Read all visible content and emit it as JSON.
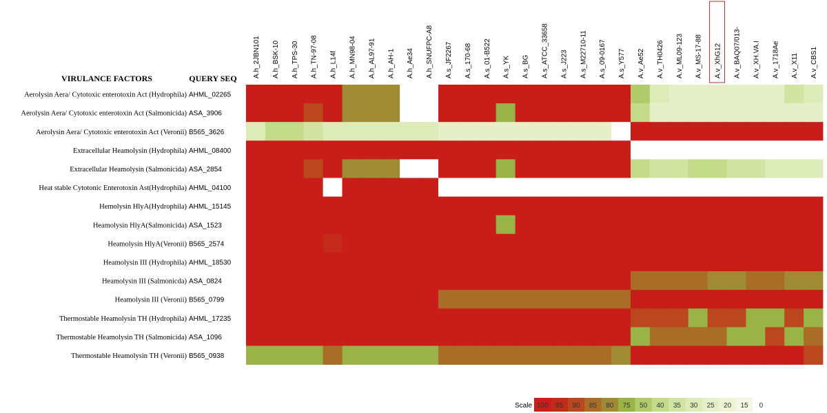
{
  "chart_data": {
    "type": "heatmap",
    "header_factors": "VIRULANCE FACTORS",
    "header_query": "QUERY SEQ",
    "columns": [
      "A.h_2JBN101",
      "A.h_BSK-10",
      "A.h_TPS-30",
      "A.h_TN-97-08",
      "A.h_L14f",
      "A.h_MN98-04",
      "A.h_AL97-91",
      "A.h_AH-1",
      "A.h_Ae34",
      "A.h_SNUFPC-A8",
      "A.s_JF2267",
      "A.s_170-68",
      "A.s_01-B522",
      "A.s_YK",
      "A.s_BG",
      "A.s_ATCC_33658",
      "A.s_J223",
      "A.s_M22710-11",
      "A.s_09-0167",
      "A.s_Y577",
      "A.v_Ae52",
      "A.v_TH0426",
      "A.v_ML09-123",
      "A.v_MS-17-88",
      "A.v_XhG12",
      "A.v_BAQ07/013-",
      "A.v_XH.VA.I",
      "A.v_1718Ae",
      "A.v_X11",
      "A.v_CBS1"
    ],
    "highlighted_column": "A.v_XhG12",
    "rows": [
      {
        "factor": "Aerolysin Aera/ Cytotoxic enterotoxin Act (Hydrophila)",
        "query": "AHML_02265",
        "values": [
          100,
          100,
          100,
          100,
          100,
          80,
          80,
          80,
          null,
          null,
          100,
          100,
          100,
          100,
          100,
          100,
          100,
          100,
          100,
          100,
          50,
          30,
          25,
          25,
          25,
          25,
          25,
          25,
          35,
          30
        ]
      },
      {
        "factor": "Aerolysin Aera/ Cytotoxic enterotoxin Act (Salmonicida)",
        "query": "ASA_3906",
        "values": [
          100,
          100,
          100,
          90,
          100,
          80,
          80,
          80,
          null,
          null,
          100,
          100,
          100,
          75,
          100,
          100,
          100,
          100,
          100,
          100,
          40,
          25,
          25,
          25,
          25,
          25,
          25,
          25,
          25,
          25
        ]
      },
      {
        "factor": "Aerolysin Aera/ Cytotoxic enterotoxin Act (Veronii)",
        "query": "B565_3626",
        "values": [
          30,
          40,
          40,
          35,
          30,
          30,
          30,
          30,
          30,
          30,
          25,
          25,
          25,
          25,
          25,
          25,
          25,
          25,
          25,
          null,
          100,
          100,
          100,
          100,
          100,
          100,
          100,
          100,
          100,
          100
        ]
      },
      {
        "factor": "Extracellular Heamolysin (Hydrophila)",
        "query": "AHML_08400",
        "values": [
          100,
          100,
          100,
          100,
          100,
          100,
          100,
          100,
          100,
          100,
          100,
          100,
          100,
          100,
          100,
          100,
          100,
          100,
          100,
          100,
          null,
          null,
          null,
          null,
          null,
          null,
          null,
          null,
          null,
          null
        ]
      },
      {
        "factor": "Extracellular Heamolysin (Salmonicida)",
        "query": "ASA_2854",
        "values": [
          100,
          100,
          100,
          90,
          100,
          80,
          80,
          80,
          null,
          null,
          100,
          100,
          100,
          75,
          100,
          100,
          100,
          100,
          100,
          100,
          40,
          35,
          35,
          40,
          40,
          35,
          35,
          30,
          30,
          30
        ]
      },
      {
        "factor": "Heat stable Cytotonic Enterotoxin Ast(Hydrophila)",
        "query": "AHML_04100",
        "values": [
          100,
          100,
          100,
          100,
          null,
          100,
          100,
          100,
          100,
          100,
          null,
          null,
          null,
          null,
          null,
          null,
          null,
          null,
          null,
          null,
          null,
          null,
          null,
          null,
          null,
          null,
          null,
          null,
          null,
          null
        ]
      },
      {
        "factor": "Hemolysin HlyA(Hydrophila)",
        "query": "AHML_15145",
        "values": [
          100,
          100,
          100,
          100,
          100,
          100,
          100,
          100,
          100,
          100,
          100,
          100,
          100,
          100,
          100,
          100,
          100,
          100,
          100,
          100,
          100,
          100,
          100,
          100,
          100,
          100,
          100,
          100,
          100,
          100
        ]
      },
      {
        "factor": "Heamolysin HlyA(Salmonicida)",
        "query": "ASA_1523",
        "values": [
          100,
          100,
          100,
          100,
          100,
          100,
          100,
          100,
          100,
          100,
          100,
          100,
          100,
          75,
          100,
          100,
          100,
          100,
          100,
          100,
          100,
          100,
          100,
          100,
          100,
          100,
          100,
          100,
          100,
          100
        ]
      },
      {
        "factor": "Heamolysin HlyA(Veronii)",
        "query": "B565_2574",
        "values": [
          100,
          100,
          100,
          100,
          95,
          100,
          100,
          100,
          100,
          100,
          100,
          100,
          100,
          100,
          100,
          100,
          100,
          100,
          100,
          100,
          100,
          100,
          100,
          100,
          100,
          100,
          100,
          100,
          100,
          100
        ]
      },
      {
        "factor": "Heamolysin III (Hydrophila)",
        "query": "AHML_18530",
        "values": [
          100,
          100,
          100,
          100,
          100,
          100,
          100,
          100,
          100,
          100,
          100,
          100,
          100,
          100,
          100,
          100,
          100,
          100,
          100,
          100,
          100,
          100,
          100,
          100,
          100,
          100,
          100,
          100,
          100,
          100
        ]
      },
      {
        "factor": "Heamolysin III (Salmonicda)",
        "query": "ASA_0824",
        "values": [
          100,
          100,
          100,
          100,
          100,
          100,
          100,
          100,
          100,
          100,
          100,
          100,
          100,
          100,
          100,
          100,
          100,
          100,
          100,
          100,
          85,
          85,
          85,
          85,
          80,
          80,
          85,
          85,
          80,
          80
        ]
      },
      {
        "factor": "Heamolysin III (Veronii)",
        "query": "B565_0799",
        "values": [
          100,
          100,
          100,
          100,
          100,
          100,
          100,
          100,
          100,
          100,
          85,
          85,
          85,
          85,
          85,
          85,
          85,
          85,
          85,
          85,
          100,
          100,
          100,
          100,
          100,
          100,
          100,
          100,
          100,
          100
        ]
      },
      {
        "factor": "Thermostable Heamolysin TH (Hydrophila)",
        "query": "AHML_17235",
        "values": [
          100,
          100,
          100,
          100,
          100,
          100,
          100,
          100,
          100,
          100,
          100,
          100,
          100,
          100,
          100,
          100,
          100,
          100,
          100,
          100,
          90,
          90,
          90,
          75,
          90,
          90,
          75,
          75,
          90,
          75
        ]
      },
      {
        "factor": "Thermostable Heamolysin TH (Salmonicida)",
        "query": "ASA_1096",
        "values": [
          100,
          100,
          100,
          100,
          100,
          100,
          100,
          100,
          100,
          100,
          100,
          100,
          100,
          100,
          100,
          100,
          100,
          100,
          100,
          100,
          75,
          85,
          85,
          85,
          85,
          75,
          75,
          90,
          75,
          85
        ]
      },
      {
        "factor": "Thermostable Heamolysin TH (Veronii)",
        "query": "B565_0938",
        "values": [
          75,
          75,
          75,
          75,
          85,
          75,
          75,
          75,
          75,
          75,
          85,
          85,
          85,
          85,
          85,
          85,
          85,
          85,
          85,
          80,
          100,
          100,
          100,
          100,
          100,
          100,
          100,
          100,
          100,
          90
        ]
      }
    ],
    "scale_label": "Scale",
    "scale_ticks": [
      100,
      95,
      90,
      85,
      80,
      75,
      50,
      40,
      35,
      30,
      25,
      20,
      15,
      0
    ],
    "colors": {
      "100": "#c81d19",
      "95": "#c42a1a",
      "90": "#ba471d",
      "85": "#a96d27",
      "80": "#a08a33",
      "75": "#99b346",
      "50": "#b0cc6a",
      "40": "#c4dc8a",
      "35": "#d2e4a2",
      "30": "#ddebb8",
      "25": "#e6f0c8",
      "20": "#edf4d6",
      "15": "#f3f8e4",
      "0": "#ffffff"
    }
  }
}
